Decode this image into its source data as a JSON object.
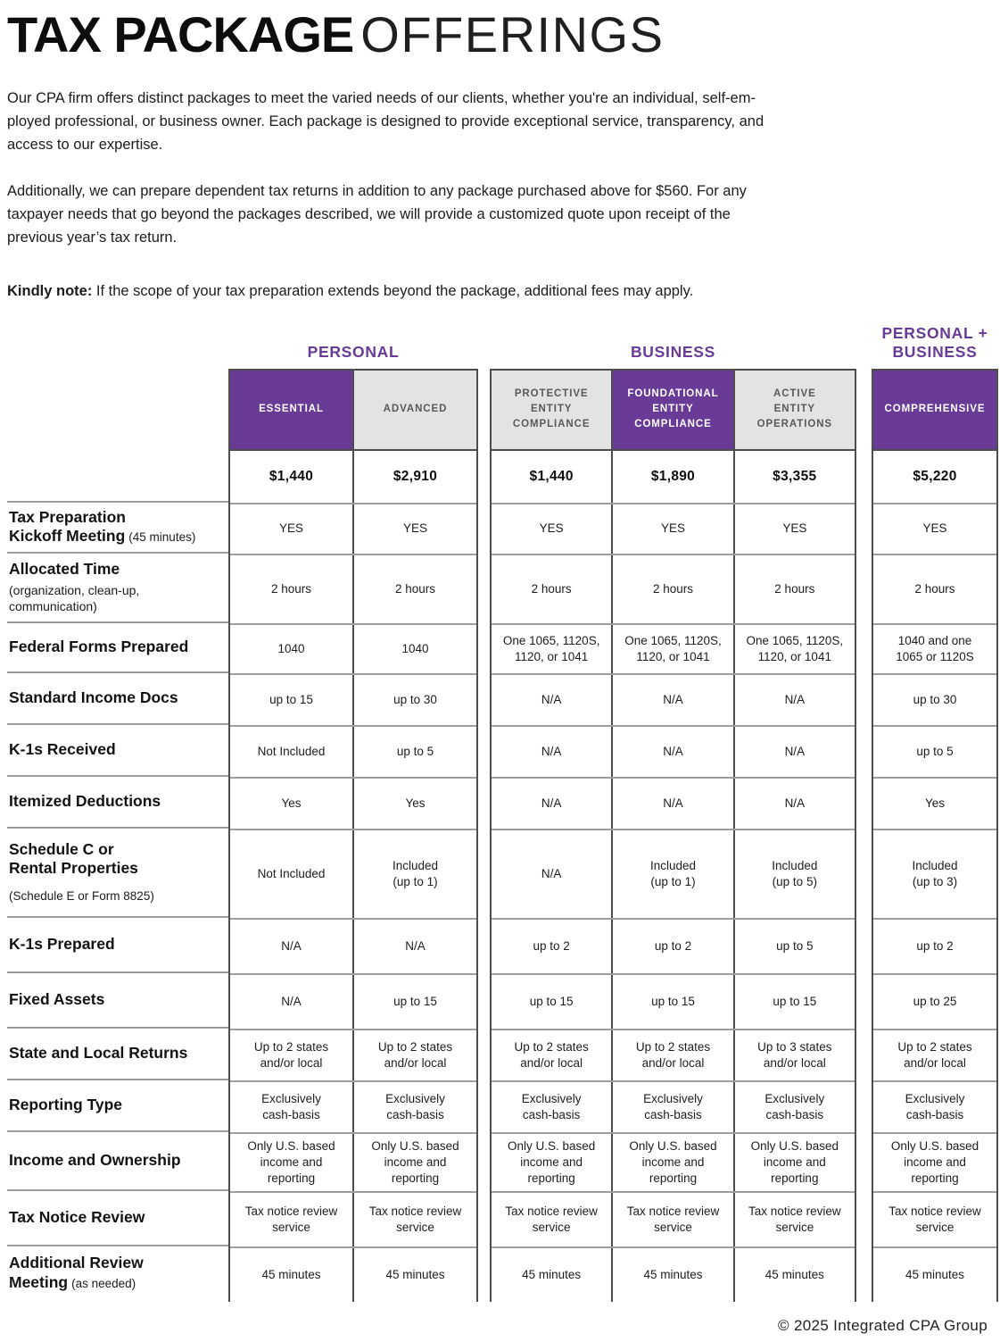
{
  "title": {
    "bold": "TAX PACKAGE",
    "light": "OFFERINGS"
  },
  "intro": {
    "p1": "Our CPA firm offers distinct packages to meet the varied needs of our clients, whether you're an individual, self-em-\nployed professional, or business owner. Each package is designed to provide exceptional service, transparency, and\naccess to our expertise.",
    "p2": "Additionally, we can prepare dependent tax returns in addition to any package purchased above for $560. For any\ntaxpayer needs that go beyond the packages described, we will provide a customized quote upon receipt of the\nprevious year’s tax return."
  },
  "note": {
    "label": "Kindly note:",
    "text": " If the scope of your tax preparation extends beyond the package, additional fees may apply."
  },
  "table": {
    "groups": [
      {
        "title": "PERSONAL",
        "columns": [
          {
            "name": "ESSENTIAL",
            "highlight": true,
            "price": "$1,440"
          },
          {
            "name": "ADVANCED",
            "highlight": false,
            "price": "$2,910"
          }
        ]
      },
      {
        "title": "BUSINESS",
        "columns": [
          {
            "name": "PROTECTIVE\nENTITY\nCOMPLIANCE",
            "highlight": false,
            "price": "$1,440"
          },
          {
            "name": "FOUNDATIONAL\nENTITY\nCOMPLIANCE",
            "highlight": true,
            "price": "$1,890"
          },
          {
            "name": "ACTIVE\nENTITY\nOPERATIONS",
            "highlight": false,
            "price": "$3,355"
          }
        ]
      },
      {
        "title": "PERSONAL +\nBUSINESS",
        "columns": [
          {
            "name": "COMPREHENSIVE",
            "highlight": true,
            "price": "$5,220"
          }
        ]
      }
    ],
    "rows": [
      {
        "label": "Tax Preparation\nKickoff Meeting",
        "sublabel": "(45 minutes)",
        "sub_style": "inline",
        "values": [
          "YES",
          "YES",
          "YES",
          "YES",
          "YES",
          "YES"
        ]
      },
      {
        "label": "Allocated Time",
        "sublabel": "(organization, clean-up,\ncommunication)",
        "sub_style": "block",
        "values": [
          "2 hours",
          "2 hours",
          "2 hours",
          "2 hours",
          "2 hours",
          "2 hours"
        ]
      },
      {
        "label": "Federal Forms Prepared",
        "values": [
          "1040",
          "1040",
          "One 1065, 1120S,\n1120, or 1041",
          "One 1065, 1120S,\n1120, or 1041",
          "One 1065, 1120S,\n1120, or 1041",
          "1040 and one\n1065 or 1120S"
        ]
      },
      {
        "label": "Standard Income Docs",
        "values": [
          "up to 15",
          "up to 30",
          "N/A",
          "N/A",
          "N/A",
          "up to 30"
        ]
      },
      {
        "label": "K-1s Received",
        "values": [
          "Not Included",
          "up to 5",
          "N/A",
          "N/A",
          "N/A",
          "up to 5"
        ]
      },
      {
        "label": "Itemized Deductions",
        "values": [
          "Yes",
          "Yes",
          "N/A",
          "N/A",
          "N/A",
          "Yes"
        ]
      },
      {
        "label": "Schedule C or\nRental Properties",
        "sublabel": "(Schedule E or Form 8825)",
        "sub_style": "block-spaced",
        "values": [
          "Not Included",
          "Included\n(up to 1)",
          "N/A",
          "Included\n(up to 1)",
          "Included\n(up to 5)",
          "Included\n(up to 3)"
        ]
      },
      {
        "label": "K-1s Prepared",
        "values": [
          "N/A",
          "N/A",
          "up to 2",
          "up to 2",
          "up to 5",
          "up to 2"
        ]
      },
      {
        "label": "Fixed Assets",
        "values": [
          "N/A",
          "up to 15",
          "up to 15",
          "up to 15",
          "up to 15",
          "up to 25"
        ]
      },
      {
        "label": "State and Local Returns",
        "values": [
          "Up to 2 states\nand/or local",
          "Up to 2 states\nand/or local",
          "Up to 2 states\nand/or local",
          "Up to 2 states\nand/or local",
          "Up to 3 states\nand/or local",
          "Up to 2 states\nand/or local"
        ]
      },
      {
        "label": "Reporting Type",
        "values": [
          "Exclusively\ncash-basis",
          "Exclusively\ncash-basis",
          "Exclusively\ncash-basis",
          "Exclusively\ncash-basis",
          "Exclusively\ncash-basis",
          "Exclusively\ncash-basis"
        ]
      },
      {
        "label": "Income and Ownership",
        "values": [
          "Only U.S. based\nincome and\nreporting",
          "Only U.S. based\nincome and\nreporting",
          "Only U.S. based\nincome and\nreporting",
          "Only U.S. based\nincome and\nreporting",
          "Only U.S. based\nincome and\nreporting",
          "Only U.S. based\nincome and\nreporting"
        ]
      },
      {
        "label": "Tax Notice Review",
        "values": [
          "Tax notice review\nservice",
          "Tax notice review\nservice",
          "Tax notice review\nservice",
          "Tax notice review\nservice",
          "Tax notice review\nservice",
          "Tax notice review\nservice"
        ]
      },
      {
        "label": "Additional Review\nMeeting",
        "sublabel": "(as needed)",
        "sub_style": "inline",
        "values": [
          "45 minutes",
          "45 minutes",
          "45 minutes",
          "45 minutes",
          "45 minutes",
          "45 minutes"
        ]
      }
    ]
  },
  "footer": {
    "copyright": "© 2025 Integrated CPA Group"
  },
  "colors": {
    "accent_purple": "#693a96",
    "header_gray": "#e3e3e3",
    "header_gray_text": "#58595b",
    "border_dark": "#4d4d4d",
    "border_light": "#9e9e9e"
  }
}
